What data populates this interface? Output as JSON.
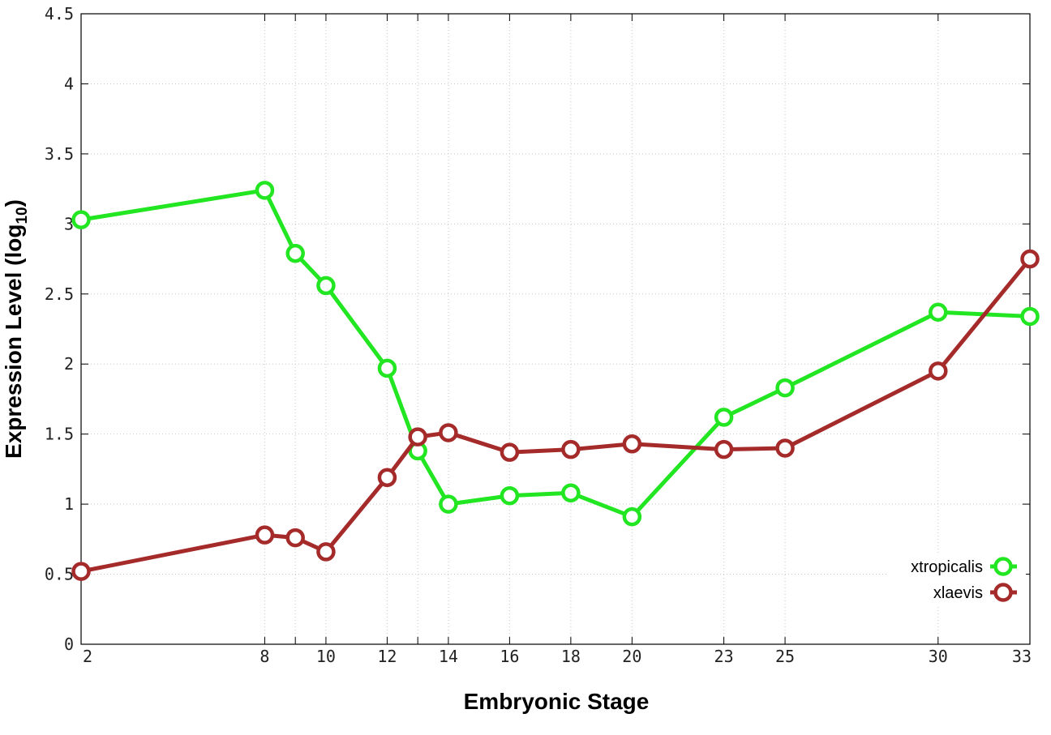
{
  "chart_data": {
    "type": "line",
    "xlabel": "Embryonic Stage",
    "ylabel": "Expression Level (log",
    "ylabel_sub": "10",
    "ylabel_close": ")",
    "x_categories": [
      "2",
      "8",
      "9",
      "10",
      "12",
      "13",
      "14",
      "16",
      "18",
      "20",
      "23",
      "25",
      "30",
      "33"
    ],
    "x_tick_labels": [
      "2",
      "8",
      "10",
      "12",
      "14",
      "16",
      "18",
      "20",
      "23",
      "25",
      "30",
      "33"
    ],
    "y_ticks": [
      "0",
      "0.5",
      "1",
      "1.5",
      "2",
      "2.5",
      "3",
      "3.5",
      "4",
      "4.5"
    ],
    "ylim": [
      0,
      4.5
    ],
    "grid": true,
    "legend_position": "bottom-right",
    "series": [
      {
        "name": "xtropicalis",
        "color": "#22e622",
        "x": [
          2,
          8,
          9,
          10,
          12,
          13,
          14,
          16,
          18,
          20,
          23,
          25,
          30,
          33
        ],
        "values": [
          3.03,
          3.24,
          2.79,
          2.56,
          1.97,
          1.38,
          1.0,
          1.06,
          1.08,
          0.91,
          1.62,
          1.83,
          2.37,
          2.34
        ]
      },
      {
        "name": "xlaevis",
        "color": "#a52a2a",
        "x": [
          2,
          8,
          9,
          10,
          12,
          13,
          14,
          16,
          18,
          20,
          23,
          25,
          30,
          33
        ],
        "values": [
          0.52,
          0.78,
          0.76,
          0.66,
          1.19,
          1.48,
          1.51,
          1.37,
          1.39,
          1.43,
          1.39,
          1.4,
          1.95,
          2.75
        ]
      }
    ]
  }
}
